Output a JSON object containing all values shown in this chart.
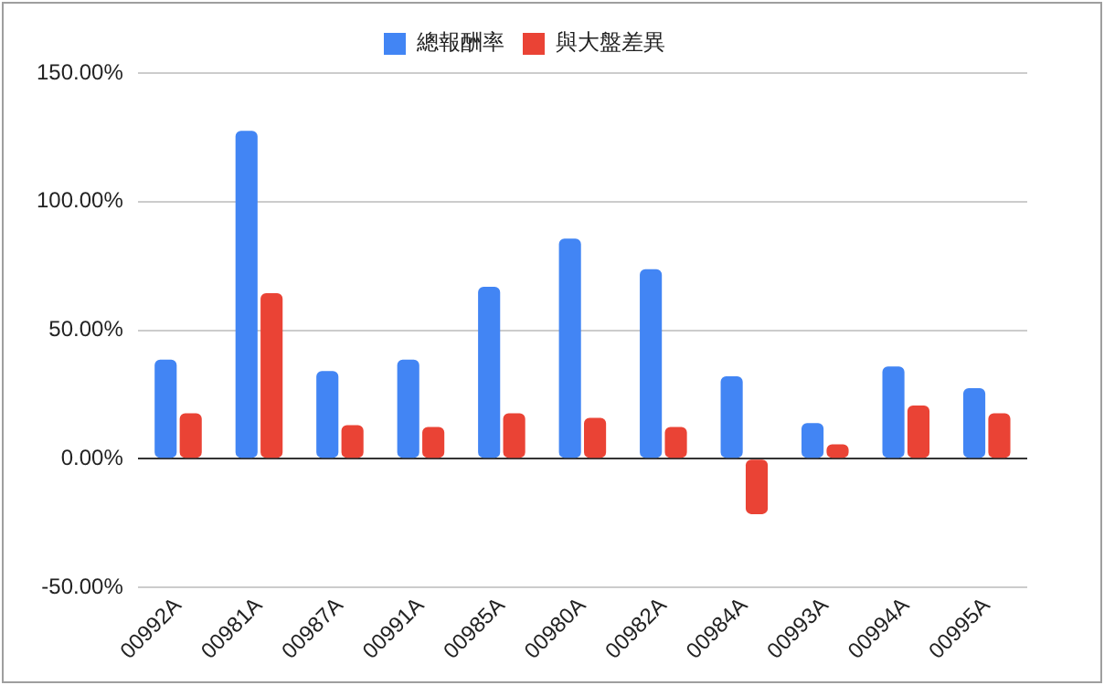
{
  "chart_data": {
    "type": "bar",
    "categories": [
      "00992A",
      "00981A",
      "00987A",
      "00991A",
      "00985A",
      "00980A",
      "00982A",
      "00984A",
      "00993A",
      "00994A",
      "00995A"
    ],
    "series": [
      {
        "name": "總報酬率",
        "color": "#4285f4",
        "values": [
          38.6,
          127.5,
          34.1,
          38.6,
          66.9,
          85.6,
          73.7,
          32.1,
          13.9,
          35.9,
          27.5
        ]
      },
      {
        "name": "與大盤差異",
        "color": "#ea4335",
        "values": [
          17.7,
          64.4,
          13.1,
          12.4,
          17.7,
          15.9,
          12.4,
          -21.5,
          5.6,
          20.7,
          17.7
        ]
      }
    ],
    "ylim": [
      -50,
      150
    ],
    "yticks": [
      {
        "value": -50,
        "label": "-50.00%"
      },
      {
        "value": 0,
        "label": "0.00%"
      },
      {
        "value": 50,
        "label": "50.00%"
      },
      {
        "value": 100,
        "label": "100.00%"
      },
      {
        "value": 150,
        "label": "150.00%"
      }
    ],
    "grid": "y",
    "legend": "top"
  }
}
